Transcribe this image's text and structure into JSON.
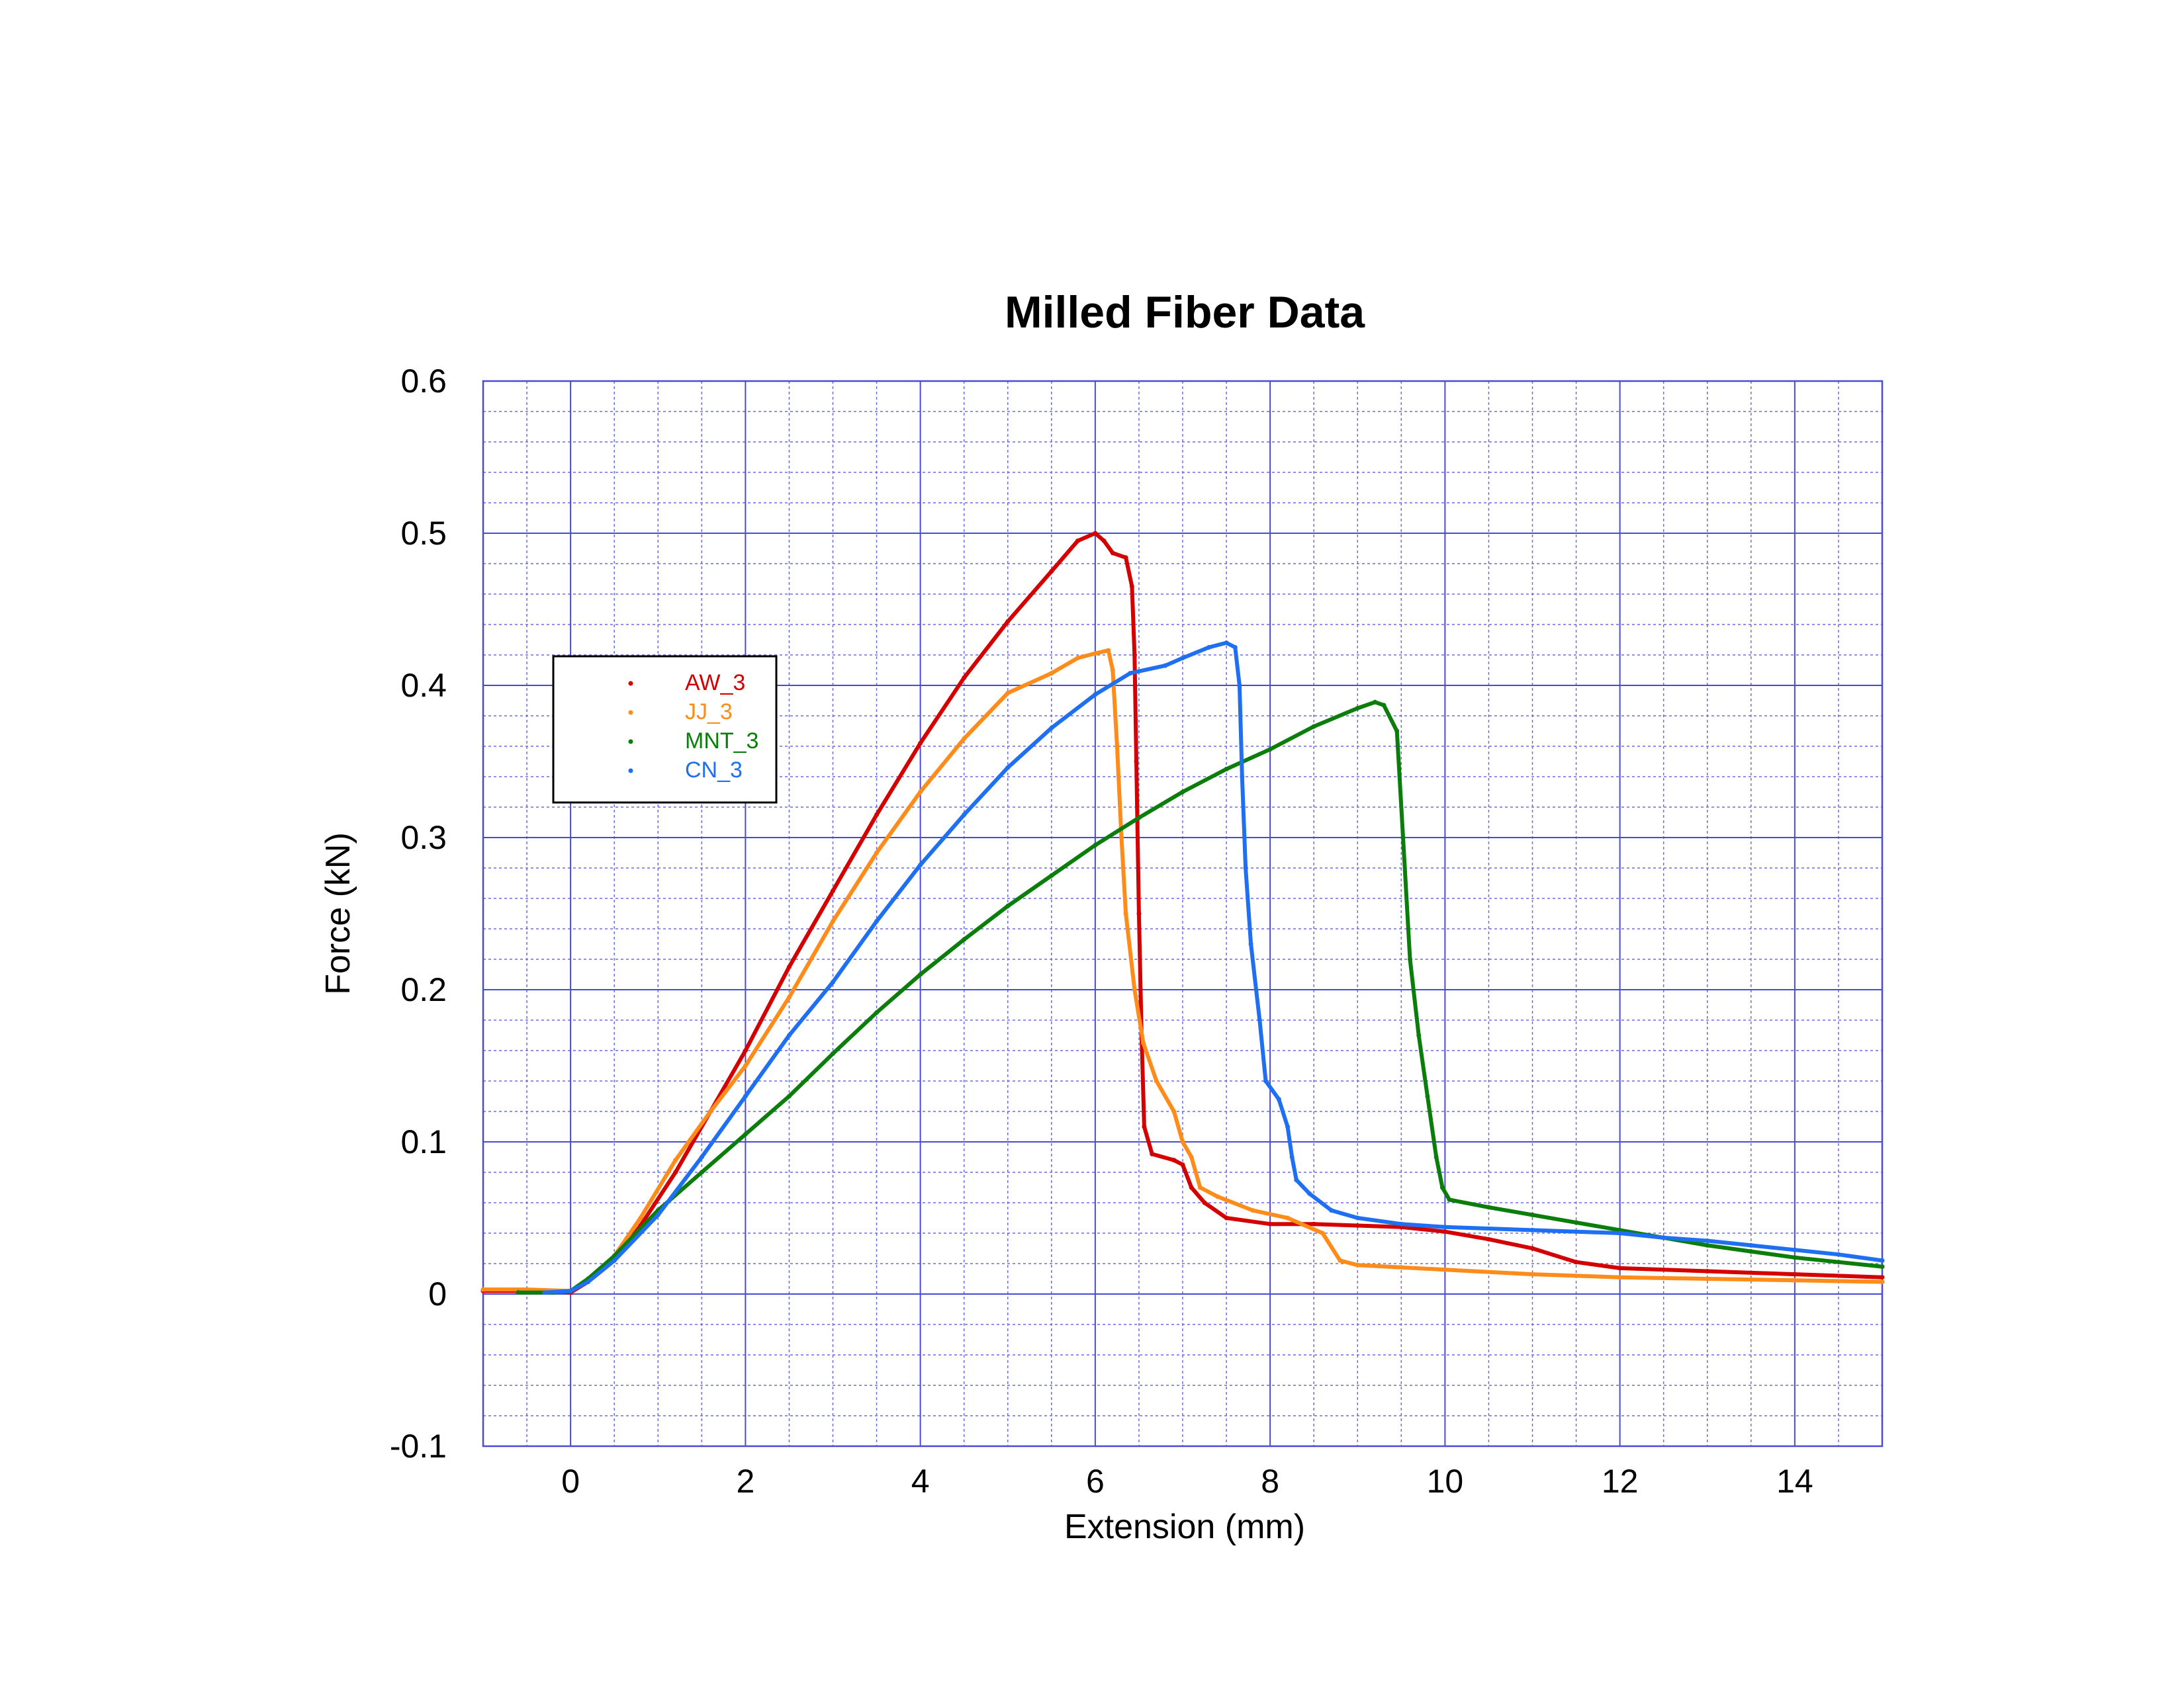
{
  "chart_data": {
    "type": "scatter",
    "title": "Milled Fiber Data",
    "xlabel": "Extension (mm)",
    "ylabel": "Force (kN)",
    "xlim": [
      -1,
      15
    ],
    "ylim": [
      -0.1,
      0.6
    ],
    "x_major_step": 2,
    "x_minor_step": 0.5,
    "y_major_step": 0.1,
    "y_minor_step": 0.02,
    "x_tick_labels": [
      "0",
      "2",
      "4",
      "6",
      "8",
      "10",
      "12",
      "14"
    ],
    "x_tick_values": [
      0,
      2,
      4,
      6,
      8,
      10,
      12,
      14
    ],
    "y_tick_labels": [
      "-0.1",
      "0",
      "0.1",
      "0.2",
      "0.3",
      "0.4",
      "0.5",
      "0.6"
    ],
    "y_tick_values": [
      -0.1,
      0,
      0.1,
      0.2,
      0.3,
      0.4,
      0.5,
      0.6
    ],
    "grid": true,
    "legend_position": "upper-left",
    "series": [
      {
        "name": "AW_3",
        "color": "#d40000",
        "points": [
          [
            -1.0,
            0.002
          ],
          [
            -0.6,
            0.002
          ],
          [
            -0.2,
            0.002
          ],
          [
            0.0,
            0.001
          ],
          [
            0.2,
            0.008
          ],
          [
            0.5,
            0.022
          ],
          [
            0.8,
            0.045
          ],
          [
            1.2,
            0.08
          ],
          [
            1.6,
            0.12
          ],
          [
            2.0,
            0.16
          ],
          [
            2.5,
            0.215
          ],
          [
            3.0,
            0.265
          ],
          [
            3.5,
            0.315
          ],
          [
            4.0,
            0.362
          ],
          [
            4.5,
            0.405
          ],
          [
            5.0,
            0.442
          ],
          [
            5.5,
            0.475
          ],
          [
            5.8,
            0.495
          ],
          [
            6.0,
            0.5
          ],
          [
            6.1,
            0.495
          ],
          [
            6.2,
            0.487
          ],
          [
            6.35,
            0.484
          ],
          [
            6.42,
            0.465
          ],
          [
            6.45,
            0.42
          ],
          [
            6.47,
            0.35
          ],
          [
            6.5,
            0.25
          ],
          [
            6.53,
            0.17
          ],
          [
            6.56,
            0.11
          ],
          [
            6.65,
            0.092
          ],
          [
            6.9,
            0.088
          ],
          [
            7.0,
            0.085
          ],
          [
            7.1,
            0.07
          ],
          [
            7.25,
            0.06
          ],
          [
            7.5,
            0.05
          ],
          [
            8.0,
            0.046
          ],
          [
            8.5,
            0.046
          ],
          [
            9.0,
            0.045
          ],
          [
            9.5,
            0.044
          ],
          [
            10.0,
            0.041
          ],
          [
            10.5,
            0.036
          ],
          [
            11.0,
            0.03
          ],
          [
            11.5,
            0.021
          ],
          [
            12.0,
            0.017
          ],
          [
            13.0,
            0.015
          ],
          [
            14.0,
            0.013
          ],
          [
            15.0,
            0.011
          ]
        ]
      },
      {
        "name": "JJ_3",
        "color": "#ff8c1a",
        "points": [
          [
            -1.0,
            0.003
          ],
          [
            -0.5,
            0.003
          ],
          [
            0.0,
            0.002
          ],
          [
            0.2,
            0.008
          ],
          [
            0.5,
            0.025
          ],
          [
            0.8,
            0.05
          ],
          [
            1.2,
            0.088
          ],
          [
            1.6,
            0.12
          ],
          [
            2.0,
            0.15
          ],
          [
            2.5,
            0.195
          ],
          [
            3.0,
            0.245
          ],
          [
            3.5,
            0.29
          ],
          [
            4.0,
            0.33
          ],
          [
            4.5,
            0.365
          ],
          [
            5.0,
            0.395
          ],
          [
            5.5,
            0.408
          ],
          [
            5.8,
            0.418
          ],
          [
            6.0,
            0.421
          ],
          [
            6.15,
            0.423
          ],
          [
            6.2,
            0.41
          ],
          [
            6.25,
            0.36
          ],
          [
            6.3,
            0.3
          ],
          [
            6.35,
            0.25
          ],
          [
            6.45,
            0.2
          ],
          [
            6.55,
            0.165
          ],
          [
            6.7,
            0.14
          ],
          [
            6.9,
            0.12
          ],
          [
            7.0,
            0.1
          ],
          [
            7.1,
            0.09
          ],
          [
            7.2,
            0.07
          ],
          [
            7.4,
            0.064
          ],
          [
            7.8,
            0.055
          ],
          [
            8.2,
            0.05
          ],
          [
            8.6,
            0.04
          ],
          [
            8.8,
            0.022
          ],
          [
            9.0,
            0.019
          ],
          [
            10.0,
            0.016
          ],
          [
            11.0,
            0.013
          ],
          [
            12.0,
            0.011
          ],
          [
            13.0,
            0.01
          ],
          [
            14.0,
            0.009
          ],
          [
            15.0,
            0.008
          ]
        ]
      },
      {
        "name": "MNT_3",
        "color": "#0b7d0b",
        "points": [
          [
            -0.6,
            0.001
          ],
          [
            -0.2,
            0.001
          ],
          [
            0.0,
            0.002
          ],
          [
            0.2,
            0.01
          ],
          [
            0.5,
            0.025
          ],
          [
            1.0,
            0.055
          ],
          [
            1.5,
            0.08
          ],
          [
            2.0,
            0.105
          ],
          [
            2.5,
            0.13
          ],
          [
            3.0,
            0.158
          ],
          [
            3.5,
            0.185
          ],
          [
            4.0,
            0.21
          ],
          [
            4.5,
            0.233
          ],
          [
            5.0,
            0.255
          ],
          [
            5.5,
            0.275
          ],
          [
            6.0,
            0.295
          ],
          [
            6.5,
            0.313
          ],
          [
            7.0,
            0.33
          ],
          [
            7.5,
            0.345
          ],
          [
            8.0,
            0.358
          ],
          [
            8.5,
            0.373
          ],
          [
            9.0,
            0.385
          ],
          [
            9.2,
            0.389
          ],
          [
            9.3,
            0.387
          ],
          [
            9.45,
            0.37
          ],
          [
            9.52,
            0.3
          ],
          [
            9.6,
            0.22
          ],
          [
            9.7,
            0.17
          ],
          [
            9.8,
            0.13
          ],
          [
            9.9,
            0.09
          ],
          [
            9.97,
            0.07
          ],
          [
            10.05,
            0.062
          ],
          [
            10.5,
            0.057
          ],
          [
            11.0,
            0.052
          ],
          [
            11.5,
            0.047
          ],
          [
            12.0,
            0.042
          ],
          [
            12.5,
            0.037
          ],
          [
            13.0,
            0.032
          ],
          [
            13.5,
            0.028
          ],
          [
            14.0,
            0.024
          ],
          [
            14.5,
            0.021
          ],
          [
            15.0,
            0.018
          ]
        ]
      },
      {
        "name": "CN_3",
        "color": "#1f6ff2",
        "points": [
          [
            -0.3,
            0.001
          ],
          [
            0.0,
            0.002
          ],
          [
            0.2,
            0.008
          ],
          [
            0.5,
            0.022
          ],
          [
            1.0,
            0.052
          ],
          [
            1.5,
            0.09
          ],
          [
            2.0,
            0.13
          ],
          [
            2.5,
            0.17
          ],
          [
            3.0,
            0.205
          ],
          [
            3.5,
            0.245
          ],
          [
            4.0,
            0.282
          ],
          [
            4.5,
            0.315
          ],
          [
            5.0,
            0.346
          ],
          [
            5.5,
            0.372
          ],
          [
            6.0,
            0.394
          ],
          [
            6.4,
            0.408
          ],
          [
            6.8,
            0.413
          ],
          [
            7.0,
            0.418
          ],
          [
            7.3,
            0.425
          ],
          [
            7.5,
            0.428
          ],
          [
            7.6,
            0.425
          ],
          [
            7.65,
            0.4
          ],
          [
            7.68,
            0.34
          ],
          [
            7.72,
            0.28
          ],
          [
            7.78,
            0.23
          ],
          [
            7.88,
            0.18
          ],
          [
            7.95,
            0.14
          ],
          [
            8.1,
            0.128
          ],
          [
            8.2,
            0.11
          ],
          [
            8.25,
            0.09
          ],
          [
            8.3,
            0.075
          ],
          [
            8.45,
            0.066
          ],
          [
            8.7,
            0.055
          ],
          [
            9.0,
            0.05
          ],
          [
            9.5,
            0.046
          ],
          [
            10.0,
            0.044
          ],
          [
            11.0,
            0.042
          ],
          [
            12.0,
            0.04
          ],
          [
            12.5,
            0.037
          ],
          [
            13.0,
            0.035
          ],
          [
            13.5,
            0.032
          ],
          [
            14.0,
            0.029
          ],
          [
            14.5,
            0.026
          ],
          [
            15.0,
            0.022
          ]
        ]
      }
    ]
  }
}
